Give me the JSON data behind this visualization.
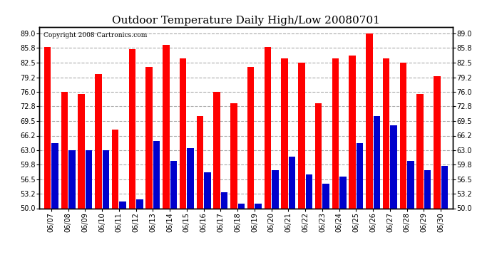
{
  "title": "Outdoor Temperature Daily High/Low 20080701",
  "copyright": "Copyright 2008 Cartronics.com",
  "dates": [
    "06/07",
    "06/08",
    "06/09",
    "06/10",
    "06/11",
    "06/12",
    "06/13",
    "06/14",
    "06/15",
    "06/16",
    "06/17",
    "06/18",
    "06/19",
    "06/20",
    "06/21",
    "06/22",
    "06/23",
    "06/24",
    "06/25",
    "06/26",
    "06/27",
    "06/28",
    "06/29",
    "06/30"
  ],
  "highs": [
    86.0,
    76.0,
    75.5,
    80.0,
    67.5,
    85.5,
    81.5,
    86.5,
    83.5,
    70.5,
    76.0,
    73.5,
    81.5,
    86.0,
    83.5,
    82.5,
    73.5,
    83.5,
    84.0,
    89.0,
    83.5,
    82.5,
    75.5,
    79.5
  ],
  "lows": [
    64.5,
    63.0,
    63.0,
    63.0,
    51.5,
    52.0,
    65.0,
    60.5,
    63.5,
    58.0,
    53.5,
    51.0,
    51.0,
    58.5,
    61.5,
    57.5,
    55.5,
    57.0,
    64.5,
    70.5,
    68.5,
    60.5,
    58.5,
    59.5
  ],
  "high_color": "#ff0000",
  "low_color": "#0000cc",
  "bg_color": "#ffffff",
  "plot_bg_color": "#ffffff",
  "grid_color": "#aaaaaa",
  "title_fontsize": 11,
  "ymin": 50.0,
  "ymax": 90.5,
  "yticks": [
    50.0,
    53.2,
    56.5,
    59.8,
    63.0,
    66.2,
    69.5,
    72.8,
    76.0,
    79.2,
    82.5,
    85.8,
    89.0
  ]
}
